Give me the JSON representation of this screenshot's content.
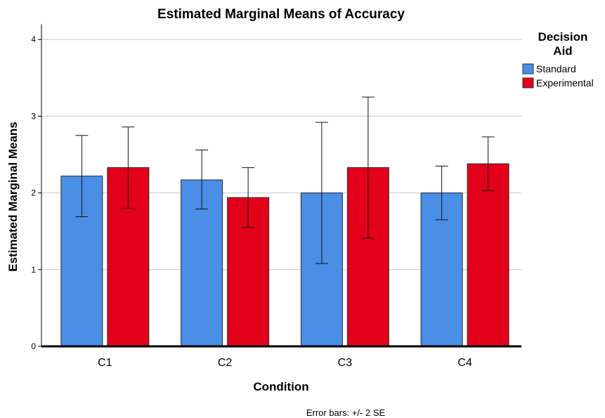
{
  "chart_data": {
    "type": "bar",
    "title": "Estimated Marginal Means of Accuracy",
    "xlabel": "Condition",
    "ylabel": "Estimated Marginal Means",
    "categories": [
      "C1",
      "C2",
      "C3",
      "C4"
    ],
    "ylim": [
      0,
      4.2
    ],
    "yticks": [
      "0",
      "1",
      "2",
      "3",
      "4"
    ],
    "grid": "horizontal",
    "legend": {
      "title_lines": [
        "Decision",
        "Aid"
      ],
      "placement": "top-right"
    },
    "series": [
      {
        "name": "Standard",
        "color": "#4a8ee6",
        "values": [
          2.22,
          2.17,
          2.0,
          2.0
        ],
        "err_low": [
          1.69,
          1.79,
          1.08,
          1.65
        ],
        "err_high": [
          2.75,
          2.56,
          2.92,
          2.35
        ]
      },
      {
        "name": "Experimental",
        "color": "#e3001b",
        "values": [
          2.33,
          1.94,
          2.33,
          2.38
        ],
        "err_low": [
          1.8,
          1.55,
          1.41,
          2.03
        ],
        "err_high": [
          2.86,
          2.33,
          3.25,
          2.73
        ]
      }
    ],
    "note": "Error bars: +/- 2 SE"
  }
}
